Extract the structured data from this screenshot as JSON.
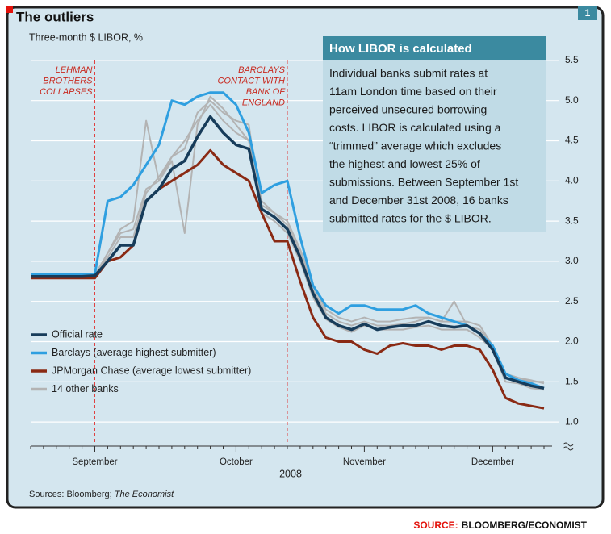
{
  "chart_data": {
    "type": "line",
    "title": "The outliers",
    "subtitle": "Three-month $ LIBOR, %",
    "page_number": "1",
    "source_note": [
      "Sources: Bloomberg; ",
      "The Economist"
    ],
    "footer": [
      "SOURCE:",
      "BLOOMBERG/ECONOMIST"
    ],
    "x_label": "2008",
    "categories": [
      null,
      null,
      null,
      null,
      null,
      "September",
      null,
      null,
      null,
      null,
      null,
      null,
      null,
      null,
      null,
      null,
      "October",
      null,
      null,
      null,
      null,
      null,
      null,
      null,
      null,
      null,
      "November",
      null,
      null,
      null,
      null,
      null,
      null,
      null,
      null,
      null,
      "December",
      null,
      null,
      null,
      null
    ],
    "ylim": [
      0.7,
      5.8
    ],
    "yticks": [
      {
        "value": 1,
        "label": "1.0"
      },
      1.5,
      {
        "value": 2,
        "label": "2.0"
      },
      2.5,
      {
        "value": 3,
        "label": "3.0"
      },
      3.5,
      {
        "value": 4,
        "label": "4.0"
      },
      4.5,
      {
        "value": 5,
        "label": "5.0"
      },
      5.5
    ],
    "grid": true,
    "legend": "lower left",
    "annotations": [
      {
        "lines": [
          "LEHMAN",
          "BROTHERS",
          "COLLAPSES"
        ],
        "at": 5
      },
      {
        "lines": [
          "BARCLAYS",
          "CONTACT WITH",
          "BANK OF",
          "ENGLAND"
        ],
        "at": 20
      }
    ],
    "info_box": {
      "title": "How LIBOR is calculated",
      "lines": [
        "Individual banks submit rates at",
        "11am London time based on their",
        "perceived unsecured borrowing",
        "costs. LIBOR is calculated using a",
        "“trimmed” average which excludes",
        "the highest and lowest 25% of",
        "submissions. Between September 1st",
        "and December 31st 2008, 16 banks",
        "submitted rates for the $ LIBOR."
      ]
    },
    "series": [
      {
        "name": "Official rate",
        "color": "#173c5a",
        "width": 3.5,
        "values": [
          2.81,
          2.81,
          2.81,
          2.81,
          2.81,
          2.82,
          3.0,
          3.2,
          3.2,
          3.75,
          3.9,
          4.15,
          4.25,
          4.55,
          4.8,
          4.6,
          4.45,
          4.4,
          3.65,
          3.55,
          3.4,
          3.05,
          2.6,
          2.3,
          2.2,
          2.15,
          2.22,
          2.15,
          2.18,
          2.2,
          2.2,
          2.25,
          2.2,
          2.18,
          2.2,
          2.1,
          1.9,
          1.55,
          1.5,
          1.45,
          1.42
        ]
      },
      {
        "name": "Barclays (average highest submitter)",
        "color": "#2f9fe0",
        "width": 3,
        "values": [
          2.84,
          2.84,
          2.84,
          2.84,
          2.84,
          2.84,
          3.75,
          3.8,
          3.95,
          4.2,
          4.45,
          5.0,
          4.95,
          5.05,
          5.1,
          5.1,
          4.95,
          4.6,
          3.85,
          3.95,
          4.0,
          3.3,
          2.7,
          2.45,
          2.35,
          2.45,
          2.45,
          2.4,
          2.4,
          2.4,
          2.45,
          2.35,
          2.3,
          2.25,
          2.2,
          2.1,
          1.95,
          1.6,
          1.52,
          1.48,
          1.42
        ]
      },
      {
        "name": "JPMorgan Chase (average lowest submitter)",
        "color": "#8a2a14",
        "width": 3,
        "values": [
          2.79,
          2.79,
          2.79,
          2.79,
          2.79,
          2.79,
          3.0,
          3.05,
          3.2,
          3.75,
          3.9,
          4.0,
          4.1,
          4.2,
          4.38,
          4.2,
          4.1,
          4.0,
          3.6,
          3.25,
          3.25,
          2.75,
          2.3,
          2.05,
          2.0,
          2.0,
          1.9,
          1.85,
          1.95,
          1.98,
          1.95,
          1.95,
          1.9,
          1.95,
          1.95,
          1.9,
          1.65,
          1.3,
          1.23,
          1.2,
          1.17
        ]
      },
      {
        "name": "14 other banks",
        "color": "#b3b3b3",
        "width": 2,
        "lines": [
          [
            2.82,
            2.82,
            2.82,
            2.82,
            2.82,
            2.83,
            3.1,
            3.4,
            3.5,
            4.75,
            4.0,
            4.3,
            4.5,
            4.75,
            4.95,
            4.75,
            4.6,
            4.5,
            3.75,
            3.6,
            3.45,
            3.1,
            2.65,
            2.35,
            2.25,
            2.2,
            2.25,
            2.2,
            2.2,
            2.22,
            2.25,
            2.3,
            2.25,
            2.5,
            2.2,
            2.15,
            1.95,
            1.6,
            1.55,
            1.5,
            1.5
          ],
          [
            2.8,
            2.8,
            2.8,
            2.8,
            2.8,
            2.81,
            3.1,
            3.35,
            3.4,
            3.9,
            4.0,
            4.25,
            3.35,
            4.7,
            5.05,
            4.9,
            4.7,
            4.5,
            3.7,
            3.6,
            3.5,
            3.15,
            2.7,
            2.4,
            2.3,
            2.25,
            2.3,
            2.25,
            2.25,
            2.28,
            2.3,
            2.3,
            2.25,
            2.25,
            2.25,
            2.2,
            1.95,
            1.6,
            1.55,
            1.52,
            1.48
          ],
          [
            2.81,
            2.81,
            2.81,
            2.81,
            2.81,
            2.82,
            3.05,
            3.3,
            3.3,
            3.85,
            4.05,
            4.3,
            4.4,
            4.85,
            5.0,
            4.85,
            4.75,
            4.7,
            3.6,
            3.5,
            3.35,
            3.0,
            2.55,
            2.28,
            2.18,
            2.12,
            2.2,
            2.15,
            2.15,
            2.15,
            2.18,
            2.2,
            2.15,
            2.15,
            2.15,
            2.05,
            1.9,
            1.5,
            1.48,
            1.42,
            1.4
          ]
        ]
      }
    ]
  }
}
